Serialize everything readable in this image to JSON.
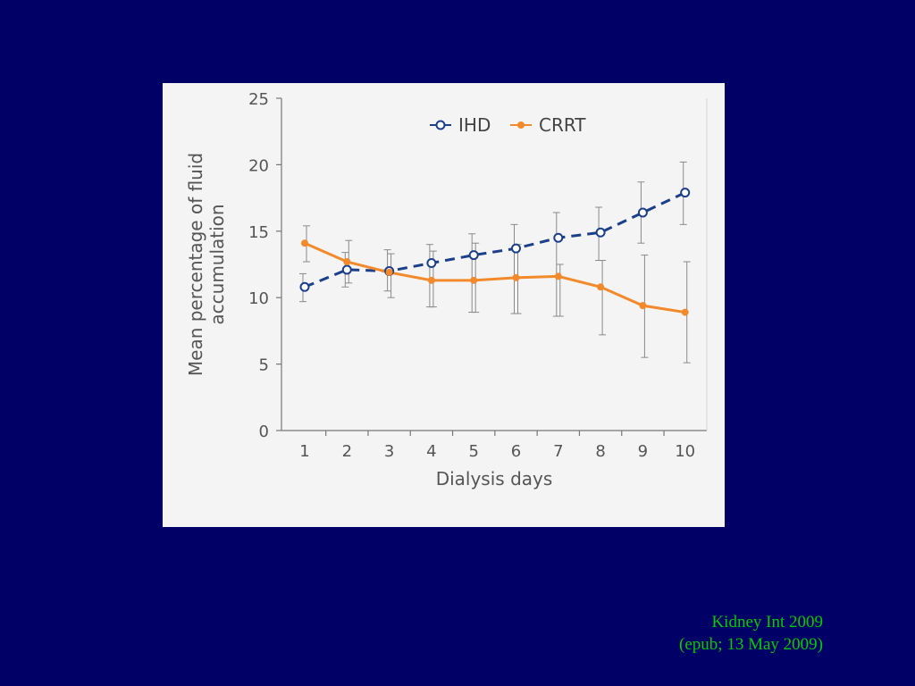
{
  "chart_data": {
    "type": "line",
    "title": "",
    "xlabel": "Dialysis days",
    "ylabel": "Mean percentage of fluid accumulation",
    "categories": [
      1,
      2,
      3,
      4,
      5,
      6,
      7,
      8,
      9,
      10
    ],
    "x_tick_labels": [
      "1",
      "2",
      "3",
      "4",
      "5",
      "6",
      "7",
      "8",
      "9",
      "10"
    ],
    "y_tick_labels": [
      "0",
      "5",
      "10",
      "15",
      "20",
      "25"
    ],
    "ylim": [
      0,
      25
    ],
    "grid": false,
    "legend_position": "top-right",
    "series": [
      {
        "name": "IHD",
        "style": "dashed, open circle markers",
        "color": "#1b3f8b",
        "values": [
          10.8,
          12.1,
          12.0,
          12.6,
          13.2,
          13.7,
          14.5,
          14.9,
          16.4,
          17.9
        ],
        "error_low": [
          9.7,
          10.8,
          10.5,
          9.3,
          8.9,
          8.8,
          8.6,
          12.8,
          14.1,
          15.5
        ],
        "error_high": [
          11.8,
          13.4,
          13.6,
          14.0,
          14.8,
          15.5,
          16.4,
          16.8,
          18.7,
          20.2
        ]
      },
      {
        "name": "CRRT",
        "style": "solid, filled circle markers",
        "color": "#f28a2b",
        "values": [
          14.1,
          12.7,
          11.9,
          11.3,
          11.3,
          11.5,
          11.6,
          10.8,
          9.4,
          8.9
        ],
        "error_low": [
          12.7,
          11.1,
          10.0,
          9.3,
          8.9,
          8.8,
          8.6,
          7.2,
          5.5,
          5.1
        ],
        "error_high": [
          15.4,
          14.3,
          13.3,
          13.5,
          14.1,
          14.0,
          12.5,
          12.8,
          13.2,
          12.7
        ]
      }
    ]
  },
  "citation": {
    "line1": "Kidney Int 2009",
    "line2": "(epub; 13 May 2009)"
  },
  "colors": {
    "background": "#000066",
    "chart_panel": "#f4f4f4",
    "axis": "#777777",
    "citation_text": "#00cc00"
  }
}
